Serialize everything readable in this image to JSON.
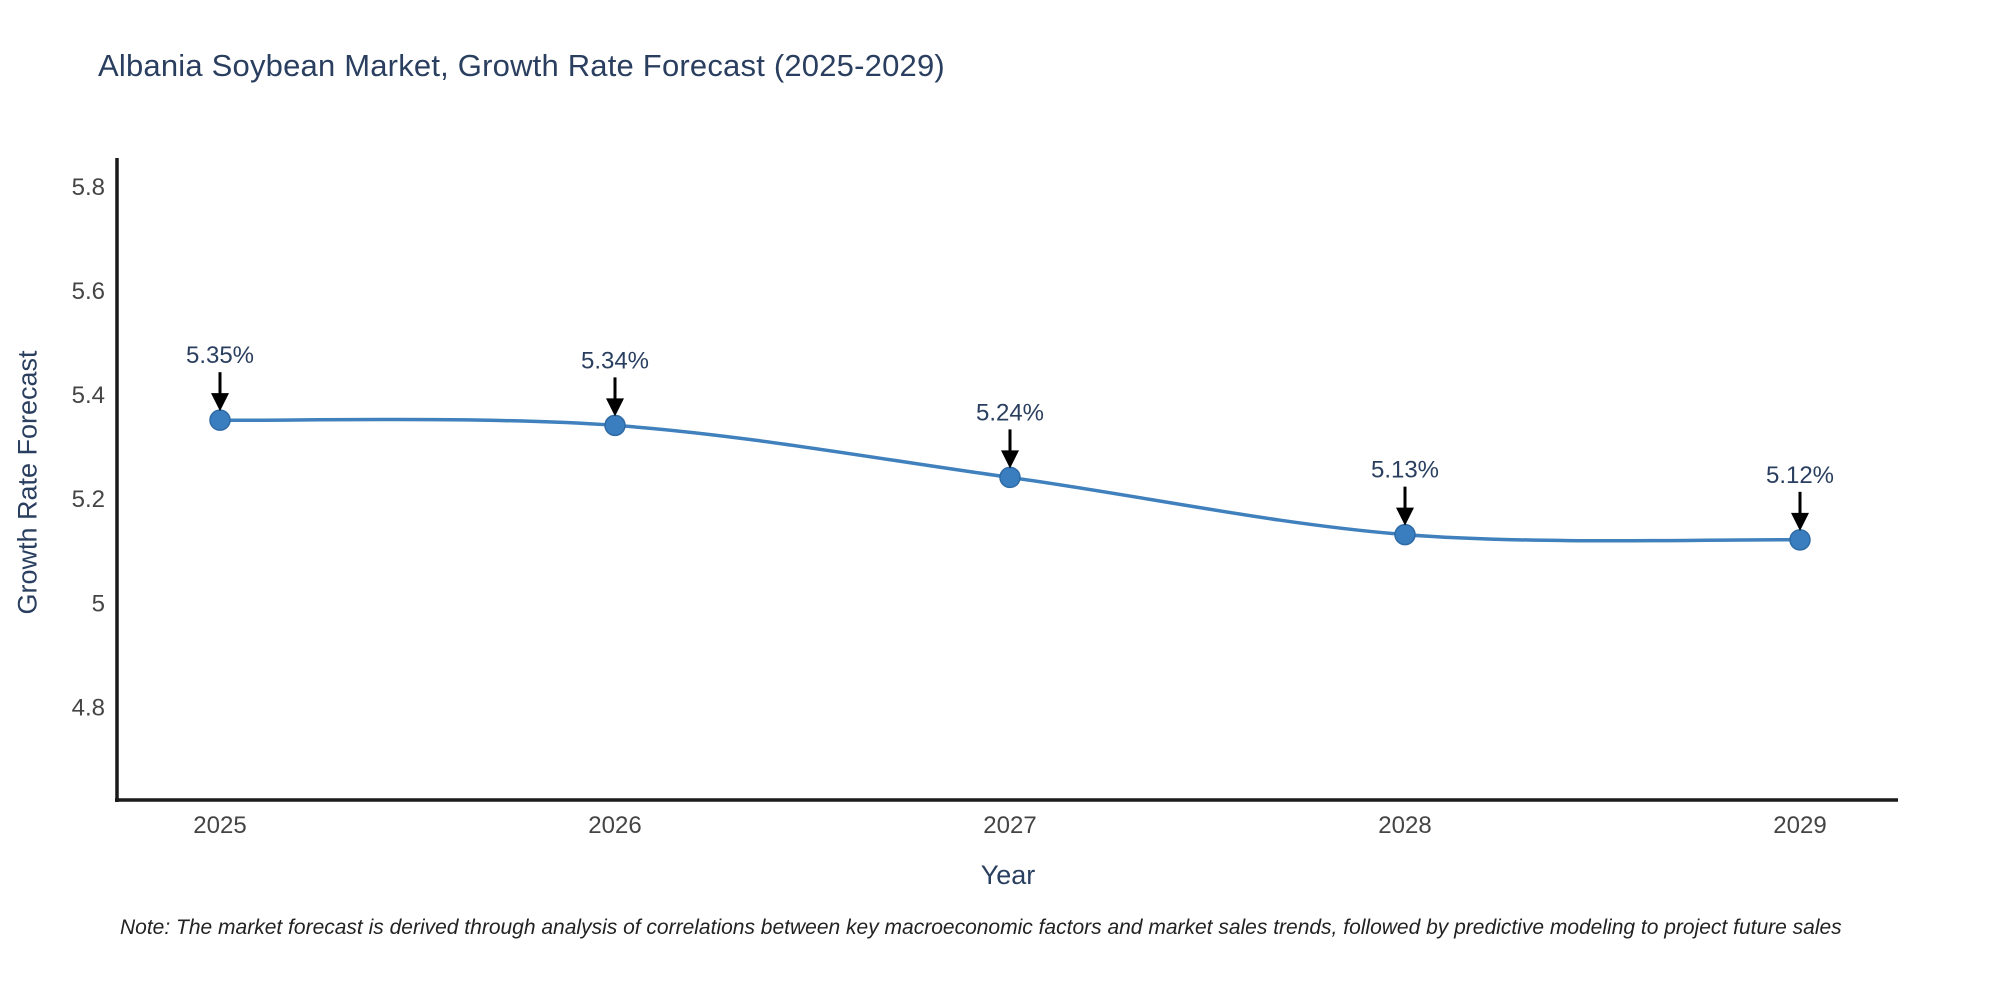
{
  "note": "Note: The market forecast is derived through analysis of correlations between key macroeconomic factors and market sales trends, followed by predictive modeling to project future sales",
  "chart_data": {
    "type": "line",
    "title": "Albania Soybean Market, Growth Rate Forecast (2025-2029)",
    "xlabel": "Year",
    "ylabel": "Growth Rate Forecast",
    "x": [
      2025,
      2026,
      2027,
      2028,
      2029
    ],
    "values": [
      5.35,
      5.34,
      5.24,
      5.13,
      5.12
    ],
    "point_labels": [
      "5.35%",
      "5.34%",
      "5.24%",
      "5.13%",
      "5.12%"
    ],
    "xtick_labels": [
      "2025",
      "2026",
      "2027",
      "2028",
      "2029"
    ],
    "yticks": [
      4.8,
      5,
      5.2,
      5.4,
      5.6,
      5.8
    ],
    "ytick_labels": [
      "4.8",
      "5",
      "5.2",
      "5.4",
      "5.6",
      "5.8"
    ],
    "ylim": [
      4.62,
      5.85
    ],
    "line_shape": "spline",
    "grid": false,
    "legend": "none",
    "colors": {
      "line": "#3f80bd",
      "marker": "#3a7ebf",
      "marker_edge": "#2e6ba6",
      "axis": "#1a1a1a",
      "tick_label": "#444444",
      "title": "#2a3f5f",
      "annotation": "#2a3f5f",
      "arrow": "#000000",
      "note": "#222222"
    }
  }
}
